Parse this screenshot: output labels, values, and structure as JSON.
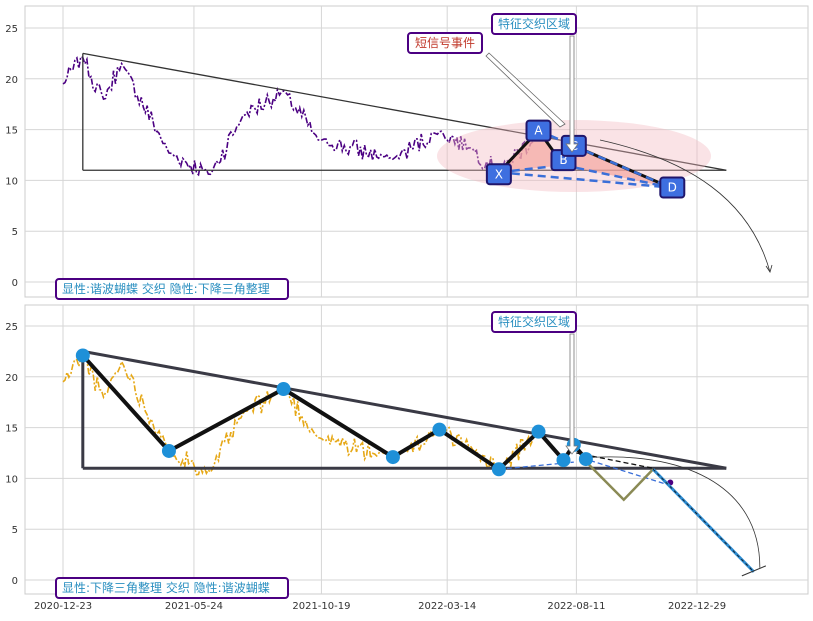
{
  "chart_data": [
    {
      "type": "line",
      "panel": "top",
      "ylim": [
        -1,
        27
      ],
      "yticks": [
        0,
        5,
        10,
        15,
        20,
        25
      ],
      "xticks": [
        "2020-12-23",
        "2021-05-24",
        "2021-10-19",
        "2022-03-14",
        "2022-08-11",
        "2022-12-29"
      ],
      "grid": true,
      "price_color": "#4b0082",
      "points_XABCD": [
        {
          "label": "X",
          "date": "2022-05-13",
          "value": 10.8
        },
        {
          "label": "A",
          "date": "2022-06-28",
          "value": 14.9
        },
        {
          "label": "B",
          "date": "2022-07-27",
          "value": 11.5
        },
        {
          "label": "C",
          "date": "2022-08-08",
          "value": 13.4
        },
        {
          "label": "D",
          "date": "2022-11-28",
          "value": 9.3
        }
      ],
      "triangle": {
        "top_start": {
          "date": "2021-01-15",
          "value": 22.5
        },
        "top_end": {
          "date": "2023-02-01",
          "value": 11.0
        },
        "base": 11.0
      },
      "annotations": {
        "signal": "短信号事件",
        "zone": "特征交织区域"
      },
      "footer": "显性:谐波蝴蝶 交织 隐性:下降三角整理"
    },
    {
      "type": "line",
      "panel": "bottom",
      "ylim": [
        -1,
        27
      ],
      "yticks": [
        0,
        5,
        10,
        15,
        20,
        25
      ],
      "xticks": [
        "2020-12-23",
        "2021-05-24",
        "2021-10-19",
        "2022-03-14",
        "2022-08-11",
        "2022-12-29"
      ],
      "grid": true,
      "price_color": "#e6a817",
      "pivots": [
        {
          "date": "2021-01-15",
          "value": 22.1
        },
        {
          "date": "2021-04-25",
          "value": 12.7
        },
        {
          "date": "2021-09-05",
          "value": 18.8
        },
        {
          "date": "2022-01-10",
          "value": 12.1
        },
        {
          "date": "2022-03-05",
          "value": 14.8
        },
        {
          "date": "2022-05-13",
          "value": 10.9
        },
        {
          "date": "2022-06-28",
          "value": 14.6
        },
        {
          "date": "2022-07-27",
          "value": 11.8
        },
        {
          "date": "2022-08-08",
          "value": 13.3
        },
        {
          "date": "2022-08-22",
          "value": 11.9
        }
      ],
      "triangle": {
        "top_start": {
          "date": "2021-01-15",
          "value": 22.5
        },
        "top_end": {
          "date": "2023-02-01",
          "value": 11.0
        },
        "base": 11.0
      },
      "projection": [
        {
          "date": "2022-08-18",
          "value": 12.0
        },
        {
          "date": "2022-10-05",
          "value": 7.9
        },
        {
          "date": "2022-11-08",
          "value": 10.9
        },
        {
          "date": "2023-03-05",
          "value": 0.8
        }
      ],
      "annotations": {
        "zone": "特征交织区域"
      },
      "footer": "显性:下降三角整理 交织 隐性:谐波蝴蝶"
    }
  ]
}
